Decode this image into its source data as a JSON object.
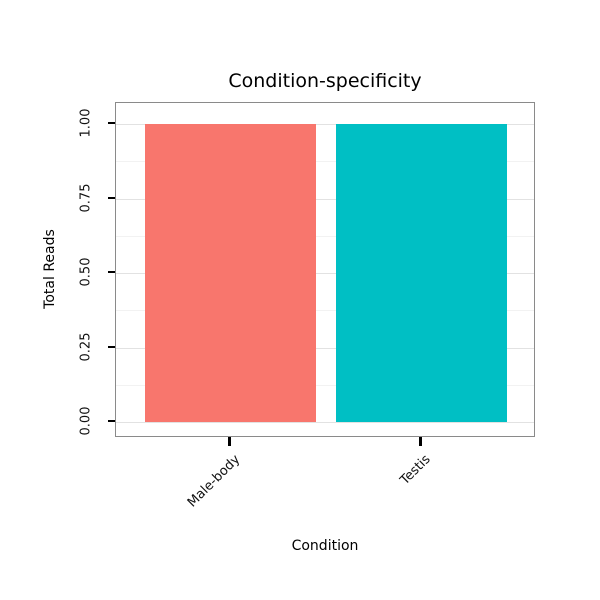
{
  "chart_data": {
    "type": "bar",
    "title": "Condition-specificity",
    "categories": [
      "Male-body",
      "Testis"
    ],
    "values": [
      1.0,
      1.0
    ],
    "xlabel": "Condition",
    "ylabel": "Total Reads",
    "ylim": [
      0,
      1.0
    ],
    "yticks": [
      "0.00",
      "0.25",
      "0.50",
      "0.75",
      "1.00"
    ],
    "minor_gridlines": [
      0.125,
      0.375,
      0.625,
      0.875
    ],
    "bar_colors": [
      "#F8766D",
      "#00BFC4"
    ],
    "grid": "on",
    "legend": "none",
    "panel_border_color": "#8a8a8a",
    "background": "#ffffff"
  }
}
